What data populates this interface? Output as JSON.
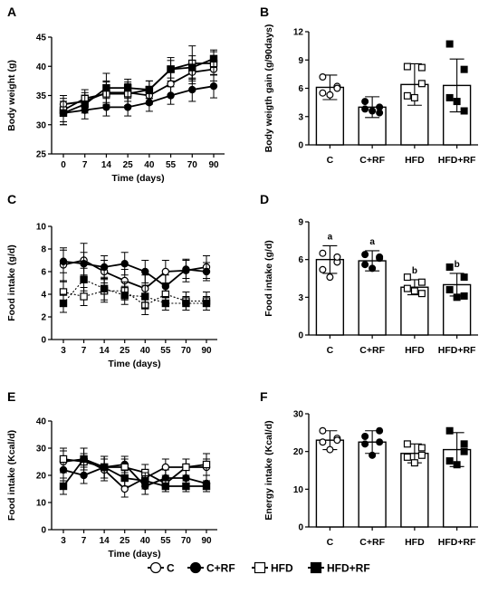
{
  "panels": [
    "A",
    "B",
    "C",
    "D",
    "E",
    "F"
  ],
  "legend": [
    {
      "label": "C",
      "marker": "circle-open"
    },
    {
      "label": "C+RF",
      "marker": "circle-filled"
    },
    {
      "label": "HFD",
      "marker": "square-open"
    },
    {
      "label": "HFD+RF",
      "marker": "square-filled"
    }
  ],
  "chart_data": [
    {
      "panel": "A",
      "type": "line",
      "ylabel": "Body weight (g)",
      "xlabel": "Time (days)",
      "categories": [
        "0",
        "7",
        "14",
        "25",
        "40",
        "55",
        "70",
        "90"
      ],
      "ylim": [
        25,
        45
      ],
      "yticks": [
        25,
        30,
        35,
        40,
        45
      ],
      "series": [
        {
          "name": "C",
          "marker": "circle-open",
          "dash": false,
          "values": [
            33.5,
            34,
            35.5,
            35.5,
            35,
            37,
            39,
            39.5
          ],
          "err": [
            1.5,
            1.5,
            2,
            1.5,
            1.5,
            2,
            2,
            2
          ]
        },
        {
          "name": "C+RF",
          "marker": "circle-filled",
          "dash": false,
          "values": [
            32,
            32.5,
            33,
            33,
            33.8,
            35,
            36,
            36.6
          ],
          "err": [
            2,
            1.5,
            1.5,
            1.5,
            1.5,
            1.5,
            2,
            2
          ]
        },
        {
          "name": "HFD",
          "marker": "square-open",
          "dash": false,
          "values": [
            32.5,
            34.5,
            35.3,
            35.3,
            36,
            39.5,
            40.5,
            40.5
          ],
          "err": [
            2,
            1.5,
            2,
            2,
            1.5,
            2,
            3,
            2
          ]
        },
        {
          "name": "HFD+RF",
          "marker": "square-filled",
          "dash": false,
          "values": [
            32,
            33.5,
            36.3,
            36.3,
            36,
            39.5,
            39.8,
            41.3
          ],
          "err": [
            2,
            1.5,
            2.5,
            1.5,
            1.5,
            1.5,
            2,
            1.5
          ]
        }
      ]
    },
    {
      "panel": "B",
      "type": "bar",
      "ylabel": "Body weigth gain (g/90days)",
      "categories": [
        "C",
        "C+RF",
        "HFD",
        "HFD+RF"
      ],
      "ylim": [
        0,
        12
      ],
      "yticks": [
        0,
        3,
        6,
        9,
        12
      ],
      "values": [
        6.1,
        4.0,
        6.4,
        6.3
      ],
      "err": [
        1.3,
        1.1,
        2.2,
        2.8
      ],
      "points": [
        [
          7.2,
          6.2,
          5.5,
          5.3,
          6.0
        ],
        [
          4.6,
          3.4,
          3.8,
          3.6,
          4.0
        ],
        [
          8.3,
          8.2,
          5.2,
          5.0,
          6.5
        ],
        [
          10.7,
          8.0,
          5.0,
          4.6,
          3.6
        ]
      ],
      "markers": [
        "circle-open",
        "circle-filled",
        "square-open",
        "square-filled"
      ],
      "letters": []
    },
    {
      "panel": "C",
      "type": "line",
      "ylabel": "Food intake (g/d)",
      "xlabel": "Time (days)",
      "categories": [
        "3",
        "7",
        "14",
        "25",
        "40",
        "55",
        "70",
        "90"
      ],
      "ylim": [
        0,
        10
      ],
      "yticks": [
        0,
        2,
        4,
        6,
        8,
        10
      ],
      "series": [
        {
          "name": "C",
          "marker": "circle-open",
          "dash": false,
          "values": [
            6.6,
            7.0,
            6.0,
            5.2,
            4.5,
            6.0,
            6.1,
            6.4
          ],
          "err": [
            1.5,
            1.5,
            1,
            1,
            1.2,
            1,
            1,
            1
          ]
        },
        {
          "name": "C+RF",
          "marker": "circle-filled",
          "dash": false,
          "values": [
            6.9,
            6.7,
            6.4,
            6.7,
            6.0,
            4.7,
            6.2,
            6.0
          ],
          "err": [
            1,
            1,
            1,
            1,
            1,
            1,
            0.8,
            0.8
          ]
        },
        {
          "name": "HFD",
          "marker": "square-open",
          "dash": true,
          "values": [
            4.2,
            3.8,
            4.3,
            4.3,
            3.0,
            4.0,
            3.4,
            3.4
          ],
          "err": [
            1,
            0.8,
            1,
            0.8,
            0.8,
            0.8,
            0.8,
            0.8
          ]
        },
        {
          "name": "HFD+RF",
          "marker": "square-filled",
          "dash": true,
          "values": [
            3.2,
            5.3,
            4.5,
            3.9,
            3.8,
            3.2,
            3.2,
            3.2
          ],
          "err": [
            0.8,
            1,
            1,
            0.8,
            1,
            0.6,
            0.6,
            0.6
          ]
        }
      ]
    },
    {
      "panel": "D",
      "type": "bar",
      "ylabel": "Food intake (g/d)",
      "categories": [
        "C",
        "C+RF",
        "HFD",
        "HFD+RF"
      ],
      "ylim": [
        0,
        9
      ],
      "yticks": [
        0,
        3,
        6,
        9
      ],
      "values": [
        6.0,
        5.9,
        3.8,
        4.0
      ],
      "err": [
        1.1,
        0.8,
        0.6,
        0.9
      ],
      "points": [
        [
          6.5,
          5.8,
          5.2,
          4.6,
          6.2
        ],
        [
          6.4,
          6.2,
          5.6,
          5.3,
          6.1
        ],
        [
          4.6,
          4.2,
          3.7,
          3.5,
          3.3
        ],
        [
          5.4,
          4.6,
          3.6,
          3.0,
          3.1
        ]
      ],
      "markers": [
        "circle-open",
        "circle-filled",
        "square-open",
        "square-filled"
      ],
      "letters": [
        "a",
        "a",
        "b",
        "b"
      ]
    },
    {
      "panel": "E",
      "type": "line",
      "ylabel": "Food intake (Kcal/d)",
      "xlabel": "Time (days)",
      "categories": [
        "3",
        "7",
        "14",
        "25",
        "40",
        "55",
        "70",
        "90"
      ],
      "ylim": [
        0,
        40
      ],
      "yticks": [
        0,
        10,
        20,
        30,
        40
      ],
      "series": [
        {
          "name": "C",
          "marker": "circle-open",
          "dash": false,
          "values": [
            25,
            26,
            22,
            15,
            19,
            23,
            23,
            23
          ],
          "err": [
            4,
            4,
            4,
            3,
            3,
            3,
            3,
            3
          ]
        },
        {
          "name": "C+RF",
          "marker": "circle-filled",
          "dash": false,
          "values": [
            22,
            20,
            23,
            24,
            16,
            19,
            19,
            17
          ],
          "err": [
            4,
            3,
            4,
            3,
            3,
            3,
            3,
            3
          ]
        },
        {
          "name": "HFD",
          "marker": "square-open",
          "dash": false,
          "values": [
            26,
            25,
            23,
            23,
            21,
            17,
            23,
            24
          ],
          "err": [
            4,
            3,
            4,
            3,
            3,
            3,
            3,
            4
          ]
        },
        {
          "name": "HFD+RF",
          "marker": "square-filled",
          "dash": false,
          "values": [
            16,
            26,
            23,
            19,
            18,
            16,
            16,
            16
          ],
          "err": [
            3,
            4,
            4,
            3,
            3,
            2,
            2,
            2
          ]
        }
      ]
    },
    {
      "panel": "F",
      "type": "bar",
      "ylabel": "Energy intake (Kcal/d)",
      "categories": [
        "C",
        "C+RF",
        "HFD",
        "HFD+RF"
      ],
      "ylim": [
        0,
        30
      ],
      "yticks": [
        0,
        10,
        20,
        30
      ],
      "values": [
        23.0,
        22.5,
        19.5,
        20.5
      ],
      "err": [
        2.5,
        3.0,
        2.5,
        4.5
      ],
      "points": [
        [
          25.5,
          23.5,
          22.5,
          20.5,
          23.0
        ],
        [
          24.0,
          25.5,
          22.0,
          19.0,
          22.5
        ],
        [
          22.0,
          21.0,
          18.5,
          17.0,
          19.0
        ],
        [
          25.5,
          22.0,
          17.5,
          16.5,
          20.0
        ]
      ],
      "markers": [
        "circle-open",
        "circle-filled",
        "square-open",
        "square-filled"
      ],
      "letters": []
    }
  ]
}
